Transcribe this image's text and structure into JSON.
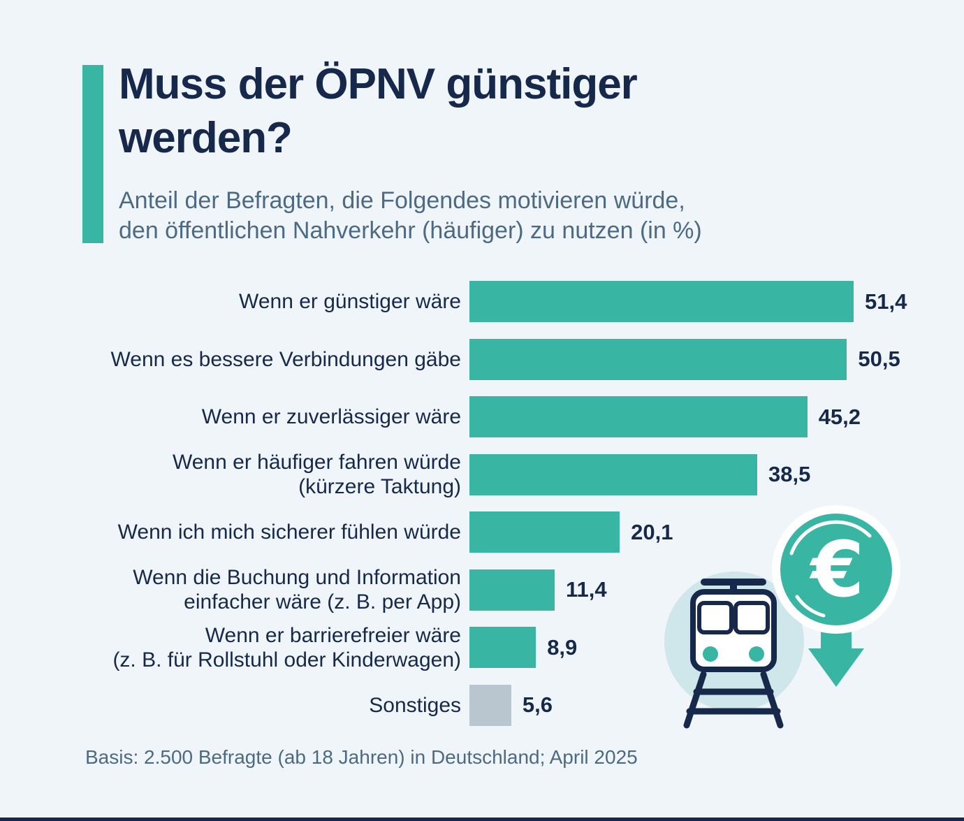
{
  "theme": {
    "background": "#f0f5fa",
    "navy": "#16294b",
    "slate": "#4c6a84",
    "accent": "#38b6a3",
    "muted": "#b9c6cf",
    "light_circle": "#cfe6ea"
  },
  "header": {
    "title_lines": [
      "Muss der ÖPNV günstiger",
      "werden?"
    ],
    "title": "Muss der ÖPNV günstiger werden?",
    "subtitle_lines": [
      "Anteil der Befragten, die Folgendes motivieren würde,",
      "den öffentlichen Nahverkehr (häufiger) zu nutzen (in %)"
    ]
  },
  "chart_data": {
    "type": "bar",
    "orientation": "horizontal",
    "unit": "%",
    "xlim": [
      0,
      51.4
    ],
    "grid": false,
    "legend": false,
    "categories": [
      "Wenn er günstiger wäre",
      "Wenn es bessere Verbindungen gäbe",
      "Wenn er zuverlässiger wäre",
      "Wenn er häufiger fahren würde (kürzere Taktung)",
      "Wenn ich mich sicherer fühlen würde",
      "Wenn die Buchung und Information einfacher wäre (z. B. per App)",
      "Wenn er barrierefreier wäre (z. B. für Rollstuhl oder Kinderwagen)",
      "Sonstiges"
    ],
    "values": [
      51.4,
      50.5,
      45.2,
      38.5,
      20.1,
      11.4,
      8.9,
      5.6
    ],
    "items": [
      {
        "label_lines": [
          "Wenn er günstiger wäre"
        ],
        "value": 51.4,
        "value_label": "51,4",
        "color_key": "accent"
      },
      {
        "label_lines": [
          "Wenn es bessere Verbindungen gäbe"
        ],
        "value": 50.5,
        "value_label": "50,5",
        "color_key": "accent"
      },
      {
        "label_lines": [
          "Wenn er zuverlässiger wäre"
        ],
        "value": 45.2,
        "value_label": "45,2",
        "color_key": "accent"
      },
      {
        "label_lines": [
          "Wenn er häufiger fahren würde",
          "(kürzere Taktung)"
        ],
        "value": 38.5,
        "value_label": "38,5",
        "color_key": "accent"
      },
      {
        "label_lines": [
          "Wenn ich mich sicherer fühlen würde"
        ],
        "value": 20.1,
        "value_label": "20,1",
        "color_key": "accent"
      },
      {
        "label_lines": [
          "Wenn die Buchung und Information",
          "einfacher wäre (z. B. per App)"
        ],
        "value": 11.4,
        "value_label": "11,4",
        "color_key": "accent"
      },
      {
        "label_lines": [
          "Wenn er barrierefreier wäre",
          "(z. B. für Rollstuhl oder Kinderwagen)"
        ],
        "value": 8.9,
        "value_label": "8,9",
        "color_key": "accent"
      },
      {
        "label_lines": [
          "Sonstiges"
        ],
        "value": 5.6,
        "value_label": "5,6",
        "color_key": "muted"
      }
    ],
    "colors": {
      "accent": "#38b6a3",
      "muted": "#b9c6cf"
    }
  },
  "footer": {
    "basis": "Basis: 2.500 Befragte (ab 18 Jahren) in Deutschland; April 2025"
  },
  "illustration": {
    "name": "train-euro-coin-down-arrow",
    "euro_symbol": "€"
  }
}
